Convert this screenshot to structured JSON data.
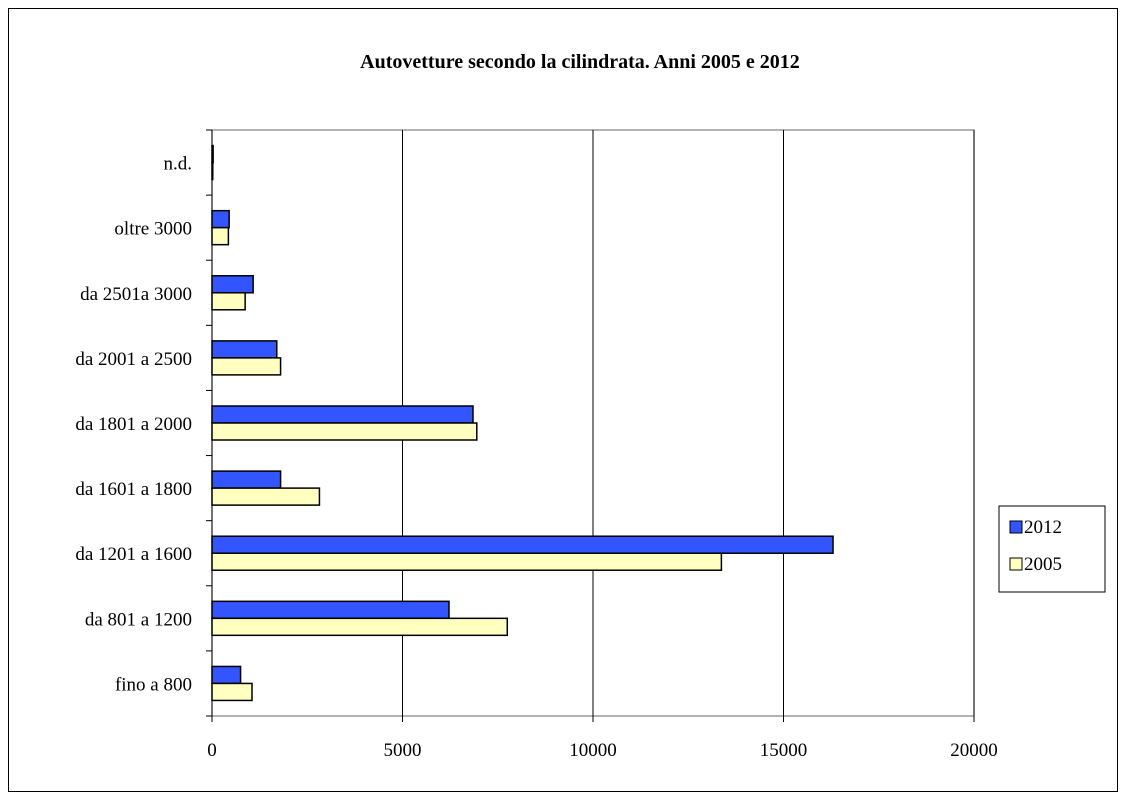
{
  "chart_data": {
    "type": "bar",
    "orientation": "horizontal",
    "title": "Autovetture secondo la cilindrata. Anni 2005 e 2012",
    "xlabel": "",
    "ylabel": "",
    "categories": [
      "fino a 800",
      "da 801 a 1200",
      "da 1201 a 1600",
      "da 1601 a 1800",
      "da 1801 a 2000",
      "da 2001 a 2500",
      "da 2501a 3000",
      "oltre 3000",
      "n.d."
    ],
    "series": [
      {
        "name": "2012",
        "color": "#3355ff",
        "values": [
          750,
          6220,
          16300,
          1800,
          6850,
          1700,
          1080,
          450,
          30
        ]
      },
      {
        "name": "2005",
        "color": "#ffffc0",
        "values": [
          1050,
          7750,
          13370,
          2820,
          6950,
          1800,
          870,
          430,
          20
        ]
      }
    ],
    "xlim": [
      0,
      20000
    ],
    "xticks": [
      0,
      5000,
      10000,
      15000,
      20000
    ],
    "grid": "vertical",
    "legend": "right"
  }
}
